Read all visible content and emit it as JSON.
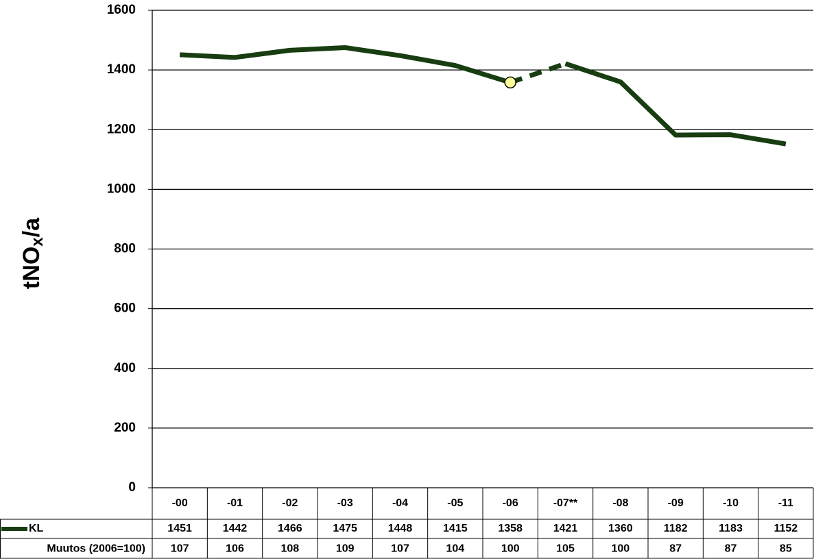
{
  "chart_data": {
    "type": "line",
    "ylabel": {
      "main": "tNO",
      "sub": "x",
      "rest": "/a"
    },
    "categories": [
      "-00",
      "-01",
      "-02",
      "-03",
      "-04",
      "-05",
      "-06",
      "-07**",
      "-08",
      "-09",
      "-10",
      "-11"
    ],
    "series": [
      {
        "name": "KL",
        "color": "#173d10",
        "values": [
          1451,
          1442,
          1466,
          1475,
          1448,
          1415,
          1358,
          1421,
          1360,
          1182,
          1183,
          1152
        ]
      }
    ],
    "index_row": {
      "name": "Muutos (2006=100)",
      "values": [
        107,
        106,
        108,
        109,
        107,
        104,
        100,
        105,
        100,
        87,
        87,
        85
      ]
    },
    "dashed_from_index": 6,
    "marker_index": 6,
    "marker_color": "#ffff99",
    "ylim": [
      0,
      1600
    ],
    "yticks": [
      0,
      200,
      400,
      600,
      800,
      1000,
      1200,
      1400,
      1600
    ],
    "grid": true
  }
}
